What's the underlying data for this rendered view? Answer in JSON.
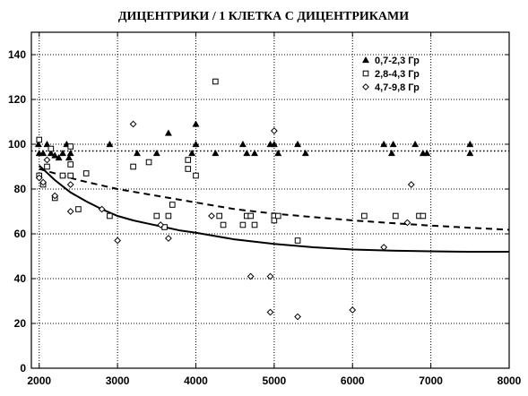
{
  "chart_data": {
    "type": "scatter",
    "title": "ДИЦЕНТРИКИ / 1 КЛЕТКА С ДИЦЕНТРИКАМИ",
    "xlabel": "",
    "ylabel": "",
    "xlim": [
      1900,
      8000
    ],
    "ylim": [
      0,
      150
    ],
    "x_ticks": [
      2000,
      3000,
      4000,
      5000,
      6000,
      7000,
      8000
    ],
    "y_ticks": [
      0,
      20,
      40,
      60,
      80,
      100,
      120,
      140
    ],
    "x_tick_labels": [
      "2000",
      "3000",
      "4000",
      "5000",
      "6000",
      "7000",
      "8000"
    ],
    "y_tick_labels": [
      "0",
      "20",
      "40",
      "60",
      "80",
      "100",
      "120",
      "140"
    ],
    "grid": true,
    "legend_position": "top-right",
    "series": [
      {
        "name": "0,7-2,3 Гр",
        "marker": "triangle-filled",
        "points": [
          [
            1990,
            100
          ],
          [
            2000,
            96
          ],
          [
            2050,
            96
          ],
          [
            2100,
            100
          ],
          [
            2150,
            96
          ],
          [
            2200,
            95
          ],
          [
            2250,
            94
          ],
          [
            2300,
            96
          ],
          [
            2350,
            100
          ],
          [
            2380,
            94
          ],
          [
            2400,
            96
          ],
          [
            2900,
            100
          ],
          [
            3250,
            96
          ],
          [
            3500,
            96
          ],
          [
            3650,
            105
          ],
          [
            3950,
            96
          ],
          [
            4000,
            100
          ],
          [
            4000,
            109
          ],
          [
            4250,
            96
          ],
          [
            4600,
            100
          ],
          [
            4650,
            96
          ],
          [
            4750,
            96
          ],
          [
            4950,
            100
          ],
          [
            5000,
            100
          ],
          [
            5050,
            96
          ],
          [
            5300,
            100
          ],
          [
            5400,
            96
          ],
          [
            6400,
            100
          ],
          [
            6500,
            96
          ],
          [
            6520,
            100
          ],
          [
            6800,
            100
          ],
          [
            6900,
            96
          ],
          [
            6950,
            96
          ],
          [
            7500,
            96
          ],
          [
            7500,
            100
          ]
        ]
      },
      {
        "name": "2,8-4,3 Гр",
        "marker": "square-open",
        "points": [
          [
            2000,
            102
          ],
          [
            2000,
            86
          ],
          [
            2050,
            82
          ],
          [
            2100,
            90
          ],
          [
            2150,
            98
          ],
          [
            2200,
            76
          ],
          [
            2300,
            86
          ],
          [
            2400,
            99
          ],
          [
            2400,
            86
          ],
          [
            2400,
            91
          ],
          [
            2500,
            71
          ],
          [
            2600,
            87
          ],
          [
            2900,
            68
          ],
          [
            3200,
            90
          ],
          [
            3400,
            92
          ],
          [
            3500,
            68
          ],
          [
            3600,
            63
          ],
          [
            3650,
            68
          ],
          [
            3700,
            73
          ],
          [
            3900,
            93
          ],
          [
            3900,
            89
          ],
          [
            4000,
            86
          ],
          [
            4250,
            128
          ],
          [
            4300,
            68
          ],
          [
            4350,
            64
          ],
          [
            4600,
            64
          ],
          [
            4650,
            68
          ],
          [
            4700,
            68
          ],
          [
            4750,
            64
          ],
          [
            5000,
            68
          ],
          [
            5000,
            66
          ],
          [
            5050,
            68
          ],
          [
            5300,
            57
          ],
          [
            6150,
            68
          ],
          [
            6550,
            68
          ],
          [
            6850,
            68
          ],
          [
            6900,
            68
          ]
        ]
      },
      {
        "name": "4,7-9,8 Гр",
        "marker": "diamond-open",
        "points": [
          [
            2000,
            85
          ],
          [
            2050,
            83
          ],
          [
            2100,
            93
          ],
          [
            2200,
            77
          ],
          [
            2400,
            70
          ],
          [
            2400,
            82
          ],
          [
            2800,
            71
          ],
          [
            3000,
            57
          ],
          [
            3200,
            109
          ],
          [
            3550,
            64
          ],
          [
            3650,
            58
          ],
          [
            4200,
            68
          ],
          [
            4700,
            41
          ],
          [
            4950,
            41
          ],
          [
            4950,
            25
          ],
          [
            5000,
            106
          ],
          [
            5300,
            23
          ],
          [
            6000,
            26
          ],
          [
            6400,
            54
          ],
          [
            6700,
            65
          ],
          [
            6750,
            82
          ]
        ]
      }
    ],
    "reference_lines": [
      {
        "style": "dotted",
        "y": 97
      }
    ],
    "fit_curves": [
      {
        "style": "solid",
        "x": [
          2000,
          2200,
          2400,
          2600,
          2800,
          3000,
          3200,
          3400,
          3600,
          3800,
          4000,
          4250,
          4500,
          4750,
          5000,
          5500,
          6000,
          6500,
          7000,
          7500,
          8000
        ],
        "y": [
          90.5,
          84,
          78.5,
          74.5,
          71,
          68,
          66,
          64.5,
          63,
          61.5,
          60.5,
          59,
          57.5,
          56.5,
          55.5,
          54,
          53,
          52.5,
          52.2,
          52,
          52
        ]
      },
      {
        "style": "dashed",
        "x": [
          2000,
          2500,
          3000,
          3500,
          4000,
          4500,
          5000,
          5500,
          6000,
          6500,
          7000,
          7500,
          8000
        ],
        "y": [
          89,
          84,
          80,
          77,
          74,
          71,
          69,
          67.5,
          66,
          64.8,
          63.7,
          62.7,
          61.8
        ]
      }
    ]
  }
}
